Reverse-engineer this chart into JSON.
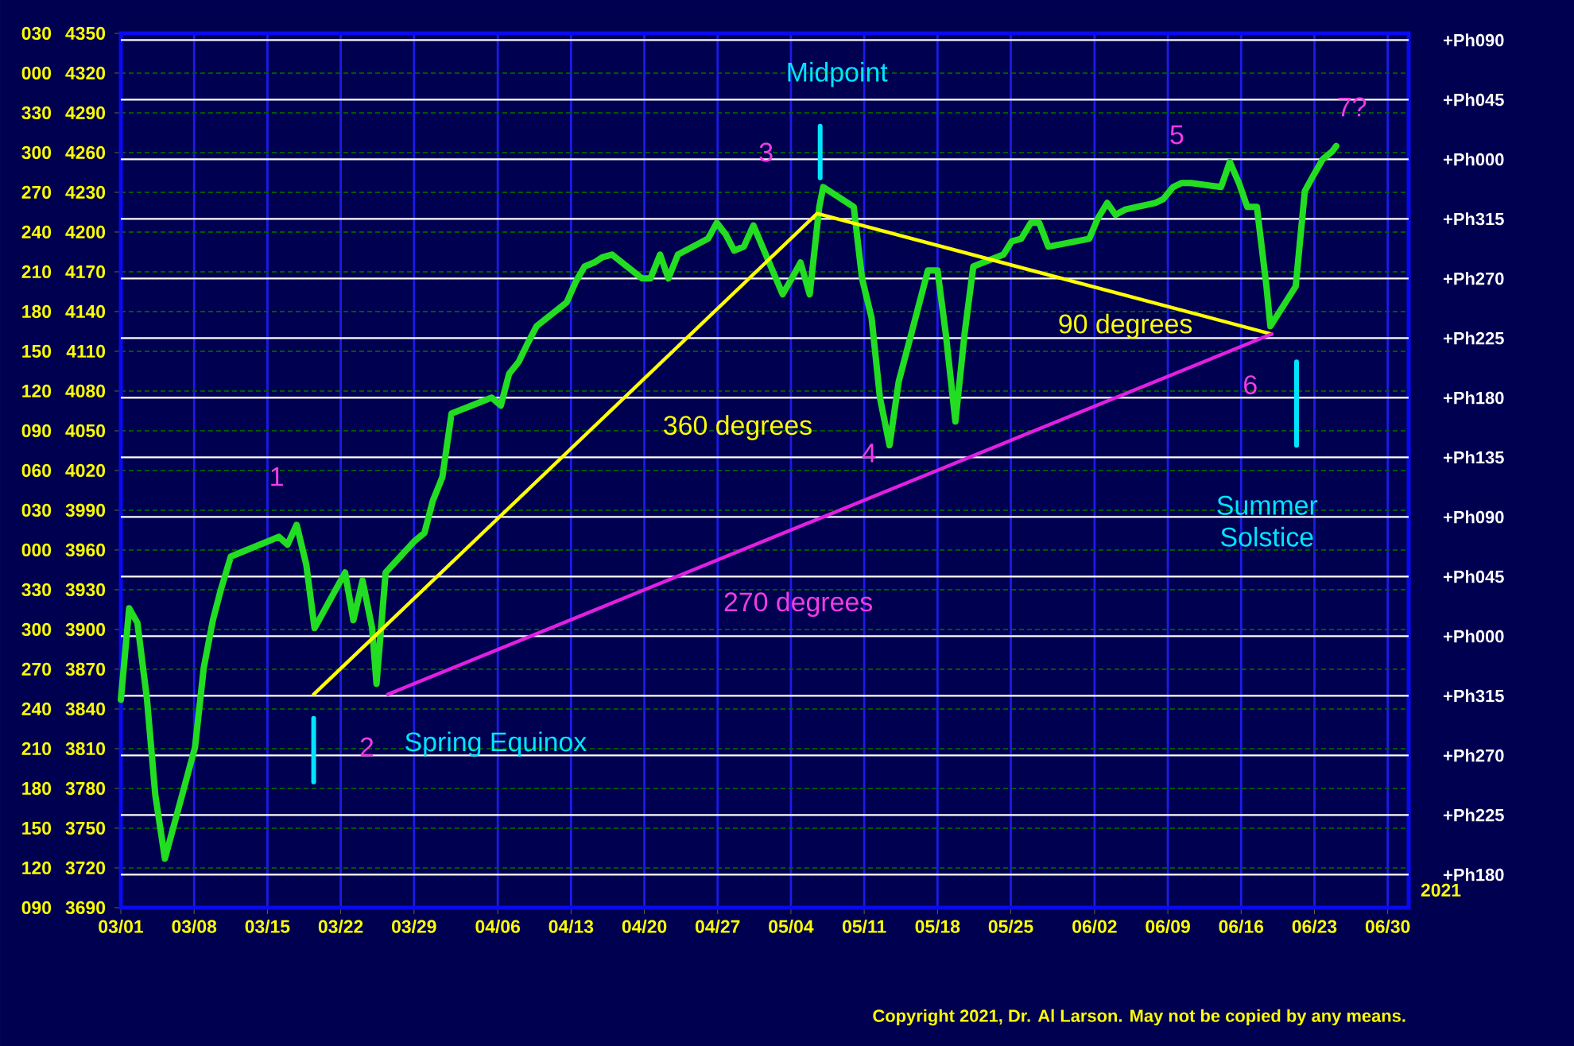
{
  "chart_data": {
    "type": "line",
    "x": [
      "2021-03-01T00:00",
      "2021-03-01T19:00",
      "2021-03-02T14:00",
      "2021-03-03T12:00",
      "2021-03-04T07:00",
      "2021-03-05T05:00",
      "2021-03-08T02:00",
      "2021-03-08T22:00",
      "2021-03-09T19:00",
      "2021-03-10T14:00",
      "2021-03-11T12:00",
      "2021-03-12T10:00",
      "2021-03-15T05:00",
      "2021-03-16T02:00",
      "2021-03-16T22:00",
      "2021-03-17T19:00",
      "2021-03-18T17:00",
      "2021-03-19T12:00",
      "2021-03-22T10:00",
      "2021-03-23T05:00",
      "2021-03-24T02:00",
      "2021-03-25T00:00",
      "2021-03-25T10:00",
      "2021-03-26T07:00",
      "2021-03-29T02:00",
      "2021-03-30T00:00",
      "2021-03-30T19:00",
      "2021-03-31T17:00",
      "2021-04-01T14:00",
      "2021-04-05T10:00",
      "2021-04-06T07:00",
      "2021-04-07T02:00",
      "2021-04-08T00:00",
      "2021-04-08T22:00",
      "2021-04-09T17:00",
      "2021-04-12T14:00",
      "2021-04-13T10:00",
      "2021-04-14T07:00",
      "2021-04-15T05:00",
      "2021-04-16T00:00",
      "2021-04-16T22:00",
      "2021-04-19T19:00",
      "2021-04-20T14:00",
      "2021-04-21T12:00",
      "2021-04-22T07:00",
      "2021-04-23T05:00",
      "2021-04-26T02:00",
      "2021-04-26T22:00",
      "2021-04-27T19:00",
      "2021-04-28T14:00",
      "2021-04-29T12:00",
      "2021-04-30T10:00",
      "2021-05-03T05:00",
      "2021-05-04T02:00",
      "2021-05-04T22:00",
      "2021-05-05T19:00",
      "2021-05-06T17:00",
      "2021-05-07T02:00",
      "2021-05-10T00:00",
      "2021-05-10T19:00",
      "2021-05-11T17:00",
      "2021-05-12T12:00",
      "2021-05-13T10:00",
      "2021-05-14T07:00",
      "2021-05-17T02:00",
      "2021-05-18T00:00",
      "2021-05-18T19:00",
      "2021-05-19T17:00",
      "2021-05-20T14:00",
      "2021-05-21T10:00",
      "2021-05-24T07:00",
      "2021-05-25T02:00",
      "2021-05-26T00:00",
      "2021-05-26T22:00",
      "2021-05-27T17:00",
      "2021-05-28T14:00",
      "2021-06-01T12:00",
      "2021-06-02T07:00",
      "2021-06-03T05:00",
      "2021-06-04T00:00",
      "2021-06-04T22:00",
      "2021-06-07T19:00",
      "2021-06-08T14:00",
      "2021-06-09T12:00",
      "2021-06-10T07:00",
      "2021-06-11T05:00",
      "2021-06-14T02:00",
      "2021-06-14T22:00",
      "2021-06-15T19:00",
      "2021-06-16T14:00",
      "2021-06-17T12:00",
      "2021-06-18T10:00",
      "2021-06-18T19:00",
      "2021-06-21T05:00",
      "2021-06-22T02:00",
      "2021-06-22T22:00",
      "2021-06-23T19:00",
      "2021-06-24T17:00",
      "2021-06-25T02:00"
    ],
    "series": [
      {
        "color": "#22dd22",
        "values": [
          3847,
          3916,
          3905,
          3847,
          3775,
          3727,
          3811,
          3871,
          3907,
          3931,
          3955,
          3958,
          3967,
          3970,
          3964,
          3979,
          3949,
          3901,
          3943,
          3907,
          3937,
          3901,
          3859,
          3943,
          3967,
          3973,
          3997,
          4015,
          4063,
          4075,
          4069,
          4093,
          4102,
          4117,
          4129,
          4147,
          4162,
          4174,
          4177,
          4181,
          4183,
          4165,
          4165,
          4183,
          4165,
          4183,
          4195,
          4207,
          4198,
          4186,
          4189,
          4205,
          4153,
          4165,
          4177,
          4153,
          4219,
          4234,
          4219,
          4165,
          4135,
          4075,
          4039,
          4087,
          4171,
          4171,
          4123,
          4057,
          4123,
          4174,
          4183,
          4193,
          4195,
          4207,
          4207,
          4189,
          4195,
          4210,
          4222,
          4213,
          4217,
          4222,
          4225,
          4234,
          4237,
          4237,
          4234,
          4253,
          4237,
          4219,
          4219,
          4159,
          4129,
          4159,
          4231,
          4243,
          4255,
          4261,
          4265
        ]
      },
      {
        "type": "line",
        "color": "#ffff00",
        "x": [
          "2021-03-19T10:00",
          "2021-05-06T12:00",
          "2021-06-18T22:00"
        ],
        "values": [
          3851,
          4214,
          4123
        ]
      },
      {
        "type": "line",
        "color": "#e020e0",
        "x": [
          "2021-03-26T12:00",
          "2021-06-18T22:00"
        ],
        "values": [
          3851,
          4123
        ]
      },
      {
        "type": "line",
        "color": "#00e5ff",
        "x": [
          "2021-03-19T10:00",
          "2021-03-19T10:00"
        ],
        "values": [
          3833,
          3785
        ]
      },
      {
        "type": "line",
        "color": "#00e5ff",
        "x": [
          "2021-05-06T19:00",
          "2021-05-06T19:00"
        ],
        "values": [
          4280,
          4241
        ]
      },
      {
        "type": "line",
        "color": "#00e5ff",
        "x": [
          "2021-06-21T07:00",
          "2021-06-21T07:00"
        ],
        "values": [
          4102,
          4039
        ]
      }
    ],
    "xlim": [
      "2021-03-01",
      "2021-07-02"
    ],
    "xticks": [
      {
        "value": "2021-03-01",
        "label": "03/01"
      },
      {
        "value": "2021-03-08",
        "label": "03/08"
      },
      {
        "value": "2021-03-15",
        "label": "03/15"
      },
      {
        "value": "2021-03-22",
        "label": "03/22"
      },
      {
        "value": "2021-03-29",
        "label": "03/29"
      },
      {
        "value": "2021-04-06",
        "label": "04/06"
      },
      {
        "value": "2021-04-13",
        "label": "04/13"
      },
      {
        "value": "2021-04-20",
        "label": "04/20"
      },
      {
        "value": "2021-04-27",
        "label": "04/27"
      },
      {
        "value": "2021-05-04",
        "label": "05/04"
      },
      {
        "value": "2021-05-11",
        "label": "05/11"
      },
      {
        "value": "2021-05-18",
        "label": "05/18"
      },
      {
        "value": "2021-05-25",
        "label": "05/25"
      },
      {
        "value": "2021-06-02",
        "label": "06/02"
      },
      {
        "value": "2021-06-09",
        "label": "06/09"
      },
      {
        "value": "2021-06-16",
        "label": "06/16"
      },
      {
        "value": "2021-06-23",
        "label": "06/23"
      },
      {
        "value": "2021-06-30",
        "label": "06/30"
      }
    ],
    "ylim": [
      3690,
      4350
    ],
    "yticks": [
      4350,
      4320,
      4290,
      4260,
      4230,
      4200,
      4170,
      4140,
      4110,
      4080,
      4050,
      4020,
      3990,
      3960,
      3930,
      3900,
      3870,
      3840,
      3810,
      3780,
      3750,
      3720,
      3690
    ],
    "grid": true,
    "ref_lines": [
      {
        "axis": "y",
        "value": 4345,
        "label": "+Ph090",
        "color": "#ffffff"
      },
      {
        "axis": "y",
        "value": 4300,
        "label": "+Ph045",
        "color": "#ffffff"
      },
      {
        "axis": "y",
        "value": 4255,
        "label": "+Ph000",
        "color": "#ffffff"
      },
      {
        "axis": "y",
        "value": 4210,
        "label": "+Ph315",
        "color": "#ffffff"
      },
      {
        "axis": "y",
        "value": 4165,
        "label": "+Ph270",
        "color": "#ffffff"
      },
      {
        "axis": "y",
        "value": 4120,
        "label": "+Ph225",
        "color": "#ffffff"
      },
      {
        "axis": "y",
        "value": 4075,
        "label": "+Ph180",
        "color": "#ffffff"
      },
      {
        "axis": "y",
        "value": 4030,
        "label": "+Ph135",
        "color": "#ffffff"
      },
      {
        "axis": "y",
        "value": 3985,
        "label": "+Ph090",
        "color": "#ffffff"
      },
      {
        "axis": "y",
        "value": 3940,
        "label": "+Ph045",
        "color": "#ffffff"
      },
      {
        "axis": "y",
        "value": 3895,
        "label": "+Ph000",
        "color": "#ffffff"
      },
      {
        "axis": "y",
        "value": 3850,
        "label": "+Ph315",
        "color": "#ffffff"
      },
      {
        "axis": "y",
        "value": 3805,
        "label": "+Ph270",
        "color": "#ffffff"
      },
      {
        "axis": "y",
        "value": 3760,
        "label": "+Ph225",
        "color": "#ffffff"
      },
      {
        "axis": "y",
        "value": 3715,
        "label": "+Ph180",
        "color": "#ffffff"
      }
    ],
    "annotations": [
      "1",
      "2",
      "Spring Equinox",
      "360 degrees",
      "3",
      "Midpoint",
      "4",
      "270 degrees",
      "90 degrees",
      "5",
      "6",
      "7?",
      "Summer Solstice",
      "2021",
      "Copyright 2021, Dr. Al Larson. May not be copied by any means.",
      "030",
      "000",
      "330",
      "300",
      "270",
      "240",
      "210",
      "180",
      "150",
      "120",
      "090",
      "060",
      "030",
      "000",
      "330",
      "300",
      "270",
      "240",
      "210",
      "180",
      "150",
      "120",
      "090"
    ]
  }
}
